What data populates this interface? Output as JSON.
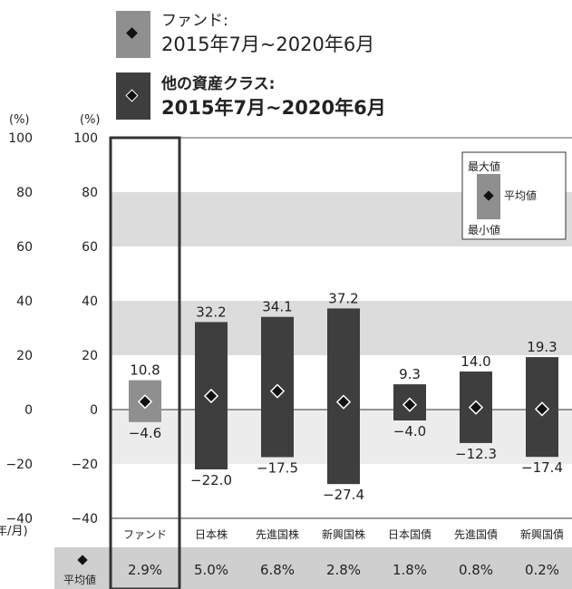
{
  "legend": {
    "fund_line1": "ファンド:",
    "fund_line2": "2015年7月~2020年6月",
    "other_line1": "他の資産クラス:",
    "other_line2": "2015年7月~2020年6月"
  },
  "key_box": {
    "max_label": "最大値",
    "avg_label": "平均値",
    "min_label": "最小値"
  },
  "axes": {
    "left_unit": "(%)",
    "right_unit": "(%)",
    "x_unit": "(年/月)",
    "avg_row_label": "平均値"
  },
  "colors": {
    "fund_bar": "#8f8f8f",
    "other_bar": "#3e3e3e",
    "band": "#dcdcdc",
    "marker": "#111111",
    "avg_row_bg": "#cfcfcf",
    "highlight_frame": "#333333"
  },
  "chart_data": {
    "type": "bar",
    "subtype": "range-with-average",
    "ylim": [
      -40,
      100
    ],
    "yticks": [
      100,
      80,
      60,
      40,
      20,
      0,
      -20,
      -40
    ],
    "grid": "alternating shaded bands",
    "categories": [
      "ファンド",
      "日本株",
      "先進国株",
      "新興国株",
      "日本国債",
      "先進国債",
      "新興国債"
    ],
    "max": [
      10.8,
      32.2,
      34.1,
      37.2,
      9.3,
      14.0,
      19.3
    ],
    "min": [
      -4.6,
      -22.0,
      -17.5,
      -27.4,
      -4.0,
      -12.3,
      -17.4
    ],
    "avg": [
      2.9,
      5.0,
      6.8,
      2.8,
      1.8,
      0.8,
      0.2
    ],
    "max_labels": [
      "10.8",
      "32.2",
      "34.1",
      "37.2",
      "9.3",
      "14.0",
      "19.3"
    ],
    "min_labels": [
      "−4.6",
      "−22.0",
      "−17.5",
      "−27.4",
      "−4.0",
      "−12.3",
      "−17.4"
    ],
    "avg_labels": [
      "2.9%",
      "5.0%",
      "6.8%",
      "2.8%",
      "1.8%",
      "0.8%",
      "0.2%"
    ]
  }
}
